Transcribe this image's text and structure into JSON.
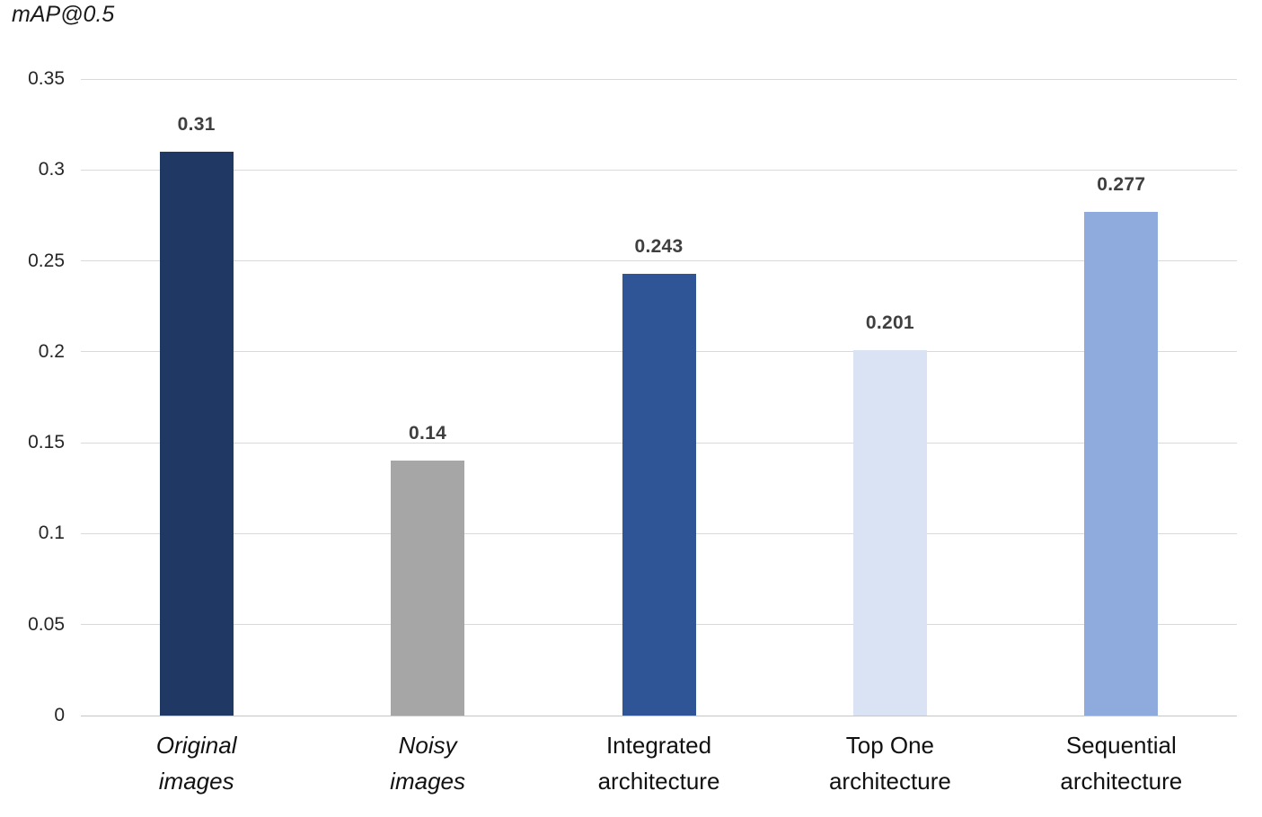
{
  "chart_data": {
    "type": "bar",
    "title": "mAP@0.5",
    "categories": [
      "Original\nimages",
      "Noisy\nimages",
      "Integrated\narchitecture",
      "Top One\narchitecture",
      "Sequential\narchitecture"
    ],
    "values": [
      0.31,
      0.14,
      0.243,
      0.201,
      0.277
    ],
    "value_labels": [
      "0.31",
      "0.14",
      "0.243",
      "0.201",
      "0.277"
    ],
    "bar_colors": [
      "#1f3864",
      "#a6a6a6",
      "#2f5597",
      "#dae3f3",
      "#8faadc"
    ],
    "italic_categories": [
      true,
      true,
      false,
      false,
      false
    ],
    "ylabel": "mAP@0.5",
    "xlabel": "",
    "ylim": [
      0,
      0.35
    ],
    "ytick_step": 0.05,
    "yticks": [
      "0",
      "0.05",
      "0.1",
      "0.15",
      "0.2",
      "0.25",
      "0.3",
      "0.35"
    ],
    "grid": "horizontal",
    "legend": "none"
  },
  "colors": {
    "gridline": "#d9d9d9",
    "axis_line": "#c6c6c6",
    "background": "#ffffff",
    "axis_text": "#262626",
    "value_label_text": "#3f3f3f"
  }
}
